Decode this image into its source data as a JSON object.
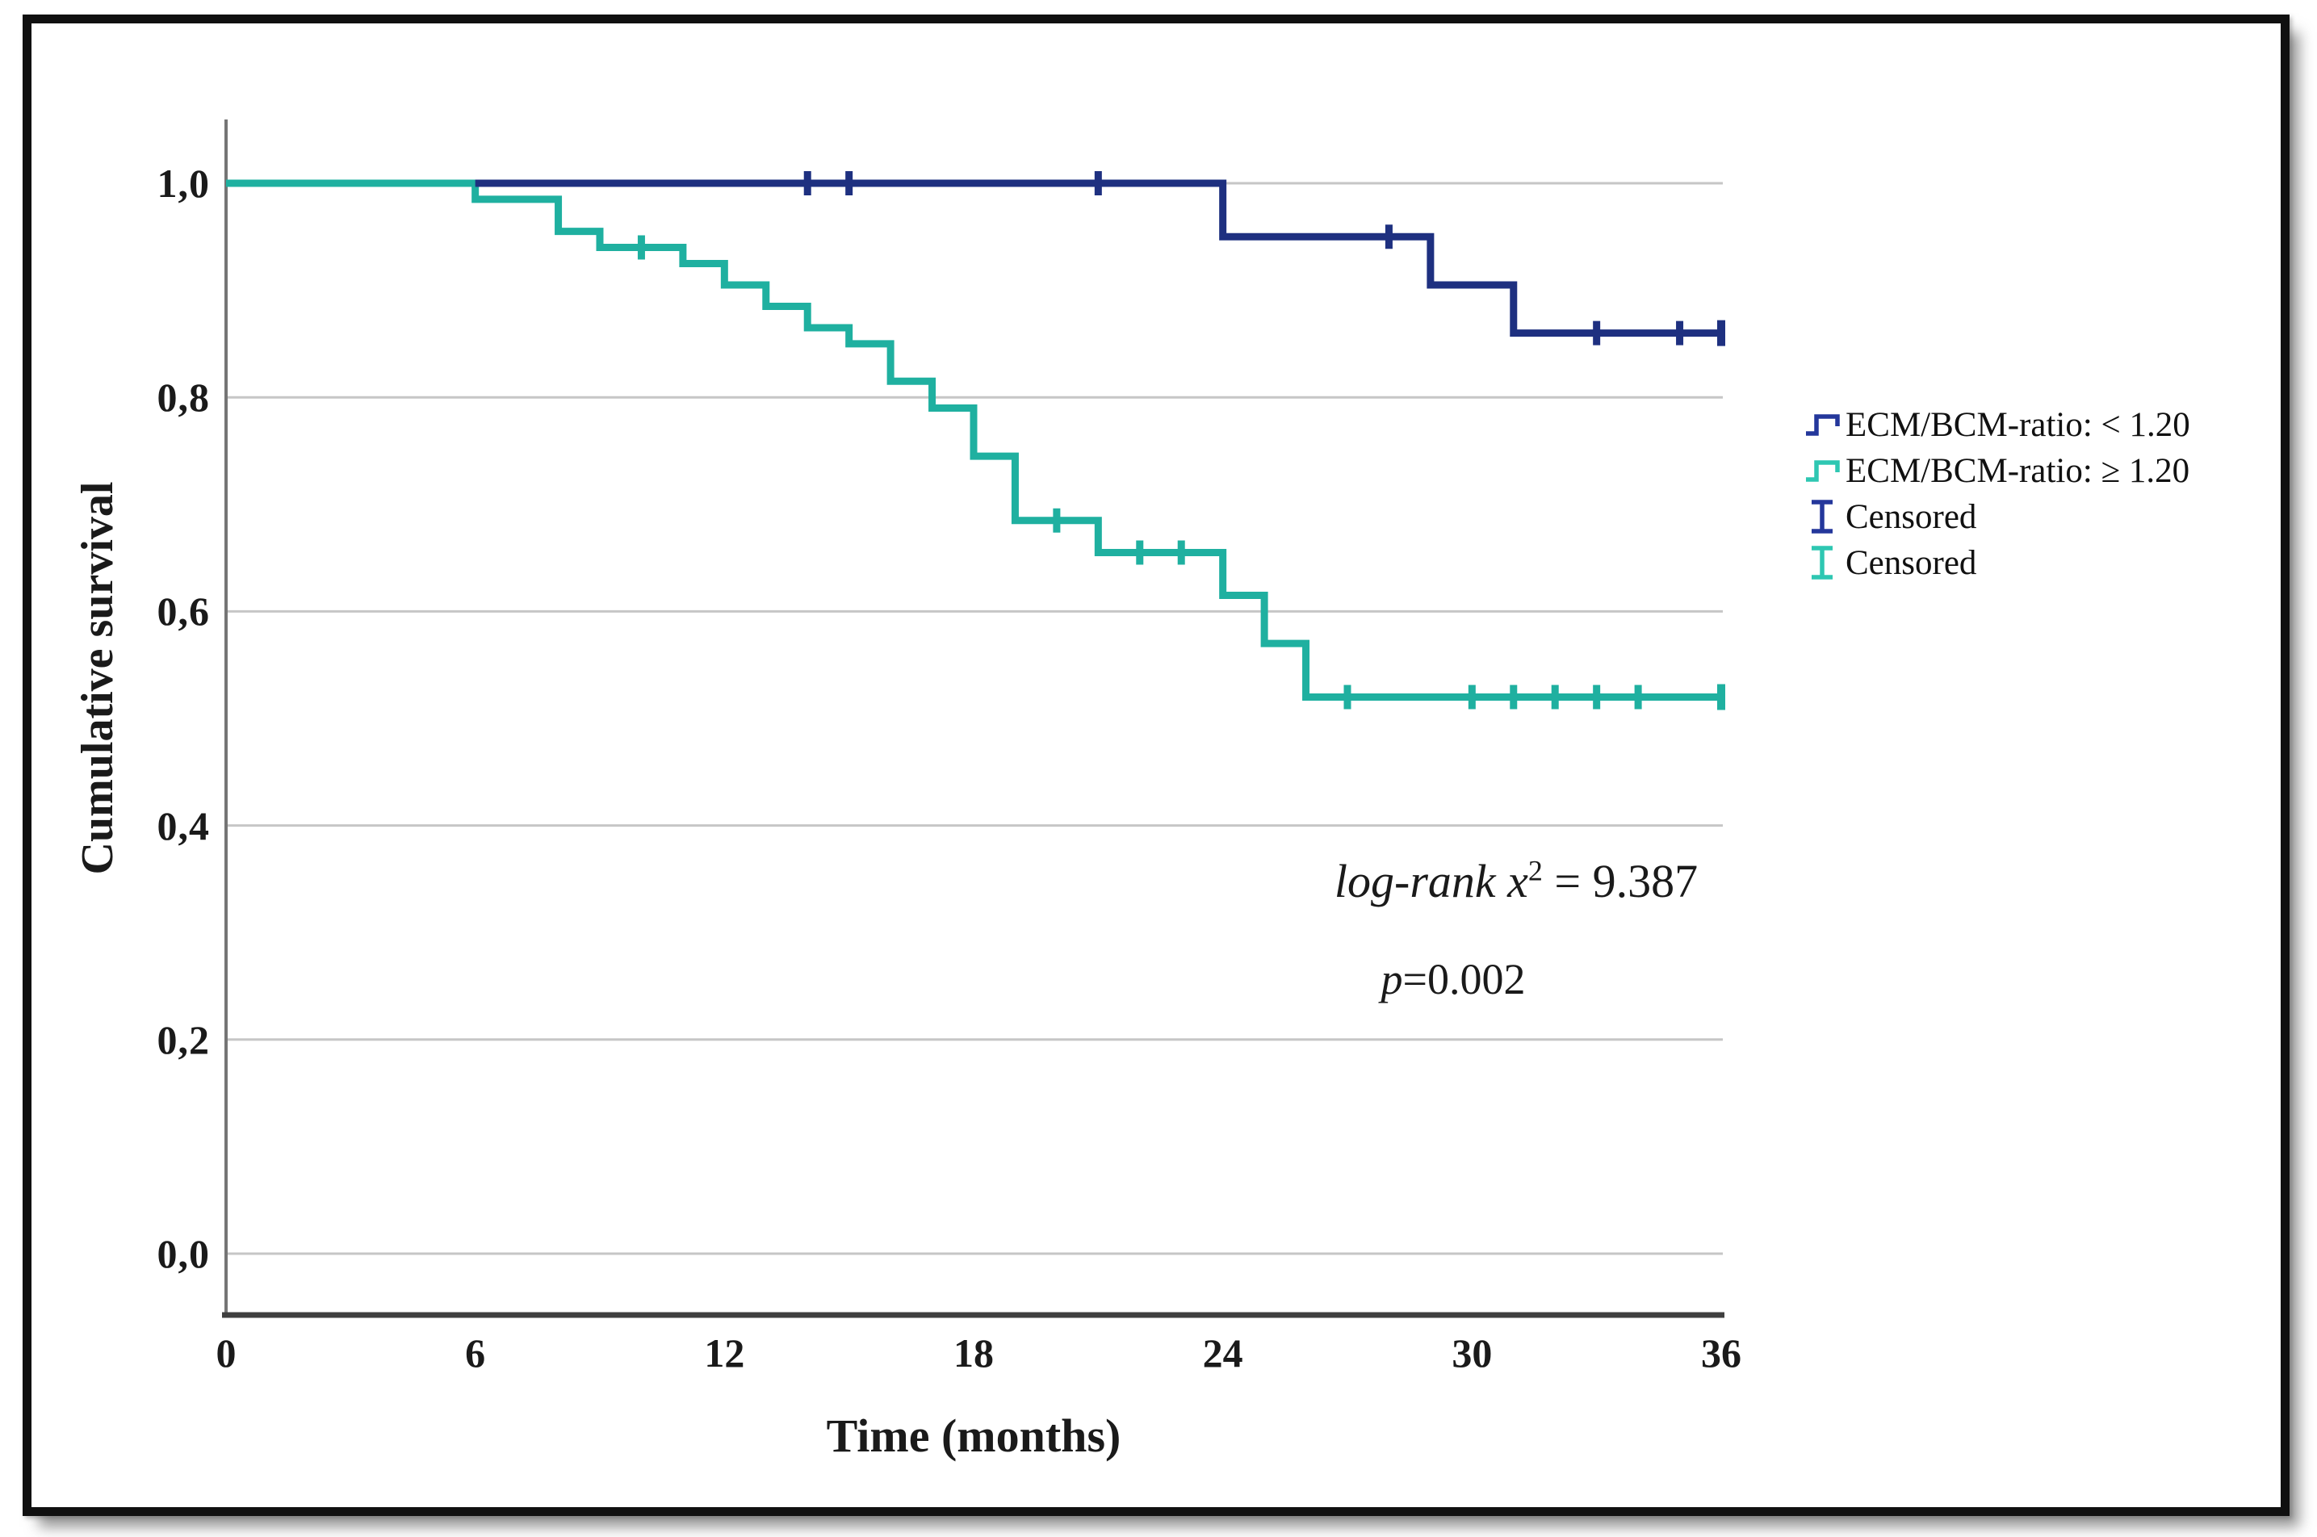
{
  "axes": {
    "ylabel": "Cumulative survival",
    "xlabel": "Time (months)",
    "y_ticks": [
      {
        "label": "1,0",
        "value": 1.0
      },
      {
        "label": "0,8",
        "value": 0.8
      },
      {
        "label": "0,6",
        "value": 0.6
      },
      {
        "label": "0,4",
        "value": 0.4
      },
      {
        "label": "0,2",
        "value": 0.2
      },
      {
        "label": "0,0",
        "value": 0.0
      }
    ],
    "x_ticks": [
      {
        "label": "0",
        "value": 0
      },
      {
        "label": "6",
        "value": 6
      },
      {
        "label": "12",
        "value": 12
      },
      {
        "label": "18",
        "value": 18
      },
      {
        "label": "24",
        "value": 24
      },
      {
        "label": "30",
        "value": 30
      },
      {
        "label": "36",
        "value": 36
      }
    ]
  },
  "annotation": {
    "line1_italic": "log-rank x",
    "line1_sup": "2",
    "line1_rest": " = 9.387",
    "line2_italic": "p",
    "line2_rest": "=0.002"
  },
  "legend": [
    {
      "label": "ECM/BCM-ratio: < 1.20",
      "icon": "step",
      "color": "#24379b"
    },
    {
      "label": "ECM/BCM-ratio: ≥ 1.20",
      "icon": "step",
      "color": "#2ec7b2"
    },
    {
      "label": "Censored",
      "icon": "censor",
      "color": "#24379b"
    },
    {
      "label": "Censored",
      "icon": "censor",
      "color": "#2ec7b2"
    }
  ],
  "colors": {
    "series_low": "#1e3080",
    "series_high": "#1fb0a0",
    "grid": "#c6c6c6",
    "y_axis": "#757575",
    "x_axis": "#3f3f3f",
    "text": "#1a1a1a"
  },
  "chart_data": {
    "type": "line",
    "subtype": "kaplan-meier-step",
    "xlabel": "Time (months)",
    "ylabel": "Cumulative survival",
    "xlim": [
      0,
      36
    ],
    "ylim": [
      0.0,
      1.0
    ],
    "grid": "horizontal-only",
    "legend_position": "right",
    "stat_annotations": [
      "log-rank x² = 9.387",
      "p=0.002"
    ],
    "series": [
      {
        "name": "ECM/BCM-ratio: < 1.20",
        "color": "#1e3080",
        "draw_from": 6,
        "steps": [
          [
            0,
            1.0
          ],
          [
            24,
            0.95
          ],
          [
            29,
            0.905
          ],
          [
            31,
            0.86
          ],
          [
            36,
            0.86
          ]
        ],
        "censors": [
          [
            14,
            1.0
          ],
          [
            15,
            1.0
          ],
          [
            21,
            1.0
          ],
          [
            28,
            0.95
          ],
          [
            33,
            0.86
          ],
          [
            35,
            0.86
          ]
        ],
        "terminal": [
          36,
          0.86
        ]
      },
      {
        "name": "ECM/BCM-ratio: ≥ 1.20",
        "color": "#1fb0a0",
        "draw_from": 0,
        "steps": [
          [
            0,
            1.0
          ],
          [
            6,
            0.985
          ],
          [
            8,
            0.955
          ],
          [
            9,
            0.94
          ],
          [
            11,
            0.925
          ],
          [
            12,
            0.905
          ],
          [
            13,
            0.885
          ],
          [
            14,
            0.865
          ],
          [
            15,
            0.85
          ],
          [
            16,
            0.815
          ],
          [
            17,
            0.79
          ],
          [
            18,
            0.745
          ],
          [
            19,
            0.685
          ],
          [
            21,
            0.655
          ],
          [
            24,
            0.615
          ],
          [
            25,
            0.57
          ],
          [
            26,
            0.52
          ],
          [
            36,
            0.52
          ]
        ],
        "censors": [
          [
            10,
            0.94
          ],
          [
            20,
            0.685
          ],
          [
            22,
            0.655
          ],
          [
            23,
            0.655
          ],
          [
            27,
            0.52
          ],
          [
            30,
            0.52
          ],
          [
            31,
            0.52
          ],
          [
            32,
            0.52
          ],
          [
            33,
            0.52
          ],
          [
            34,
            0.52
          ]
        ],
        "terminal": [
          36,
          0.52
        ]
      }
    ]
  }
}
